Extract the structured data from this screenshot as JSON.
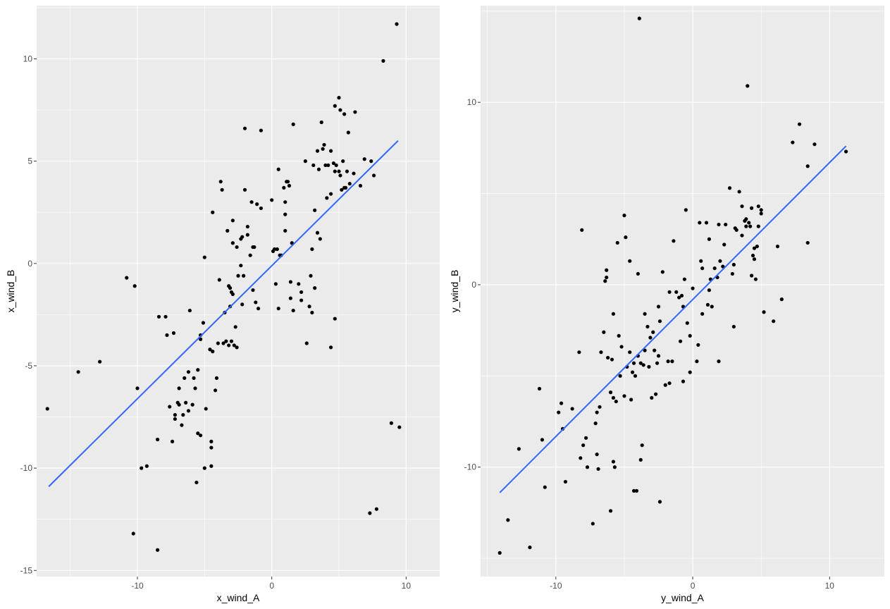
{
  "colors": {
    "panel": "#ebebeb",
    "grid": "#ffffff",
    "point": "#000000",
    "fit": "#3366ff",
    "tick_text": "#4d4d4d"
  },
  "chart_data": [
    {
      "type": "scatter",
      "title": "",
      "xlabel": "x_wind_A",
      "ylabel": "x_wind_B",
      "xlim": [
        -17.5,
        12.5
      ],
      "ylim": [
        -15.3,
        12.6
      ],
      "grid": true,
      "x_ticks": [
        -10,
        0,
        10
      ],
      "y_ticks": [
        -15,
        -10,
        -5,
        0,
        5,
        10
      ],
      "fit_line": {
        "x": [
          -16.6,
          9.4
        ],
        "y": [
          -10.9,
          6.0
        ]
      },
      "points": [
        [
          -16.7,
          -7.1
        ],
        [
          -14.4,
          -5.3
        ],
        [
          -12.8,
          -4.8
        ],
        [
          -10.8,
          -0.7
        ],
        [
          -10.2,
          -1.1
        ],
        [
          -10.0,
          -6.1
        ],
        [
          -9.7,
          -10.0
        ],
        [
          -9.3,
          -9.9
        ],
        [
          -10.3,
          -13.2
        ],
        [
          -8.5,
          -14.0
        ],
        [
          -8.5,
          -8.6
        ],
        [
          -8.4,
          -2.6
        ],
        [
          -7.9,
          -2.6
        ],
        [
          -7.8,
          -3.5
        ],
        [
          -7.6,
          -7.0
        ],
        [
          -7.4,
          -8.7
        ],
        [
          -7.3,
          -3.4
        ],
        [
          -7.2,
          -7.6
        ],
        [
          -7.2,
          -7.4
        ],
        [
          -7.0,
          -6.8
        ],
        [
          -6.9,
          -6.1
        ],
        [
          -6.9,
          -6.9
        ],
        [
          -6.7,
          -7.9
        ],
        [
          -6.6,
          -7.4
        ],
        [
          -6.5,
          -5.6
        ],
        [
          -6.4,
          -6.8
        ],
        [
          -6.2,
          -7.2
        ],
        [
          -6.2,
          -5.3
        ],
        [
          -6.1,
          -2.3
        ],
        [
          -5.9,
          -6.9
        ],
        [
          -5.8,
          -5.6
        ],
        [
          -5.7,
          -6.1
        ],
        [
          -5.6,
          -10.7
        ],
        [
          -5.5,
          -5.2
        ],
        [
          -5.5,
          -8.3
        ],
        [
          -5.3,
          -8.4
        ],
        [
          -5.3,
          -3.5
        ],
        [
          -5.3,
          -3.7
        ],
        [
          -5.1,
          -2.9
        ],
        [
          -5.0,
          -10.0
        ],
        [
          -5.0,
          0.3
        ],
        [
          -4.9,
          -7.1
        ],
        [
          -4.6,
          -4.2
        ],
        [
          -4.5,
          -8.7
        ],
        [
          -4.5,
          -9.0
        ],
        [
          -4.5,
          -9.9
        ],
        [
          -4.4,
          -4.3
        ],
        [
          -4.4,
          2.5
        ],
        [
          -4.2,
          -6.2
        ],
        [
          -4.1,
          -5.6
        ],
        [
          -4.0,
          -3.9
        ],
        [
          -3.9,
          -0.8
        ],
        [
          -3.8,
          4.0
        ],
        [
          -3.7,
          3.6
        ],
        [
          -3.6,
          -3.9
        ],
        [
          -3.5,
          -2.4
        ],
        [
          -3.4,
          -3.8
        ],
        [
          -3.3,
          1.6
        ],
        [
          -3.2,
          -4.0
        ],
        [
          -3.2,
          -1.1
        ],
        [
          -3.1,
          -1.2
        ],
        [
          -3.1,
          -2.1
        ],
        [
          -3.0,
          -3.8
        ],
        [
          -3.0,
          -1.4
        ],
        [
          -2.9,
          -1.5
        ],
        [
          -2.9,
          2.1
        ],
        [
          -2.9,
          1.0
        ],
        [
          -2.8,
          -4.0
        ],
        [
          -2.7,
          -3.1
        ],
        [
          -2.6,
          -4.1
        ],
        [
          -2.6,
          0.8
        ],
        [
          -2.5,
          -0.6
        ],
        [
          -2.3,
          -0.1
        ],
        [
          -2.3,
          1.2
        ],
        [
          -2.2,
          -2.0
        ],
        [
          -2.2,
          1.3
        ],
        [
          -2.1,
          -0.6
        ],
        [
          -2.0,
          3.6
        ],
        [
          -2.0,
          6.6
        ],
        [
          -1.8,
          1.8
        ],
        [
          -1.8,
          1.4
        ],
        [
          -1.6,
          0.4
        ],
        [
          -1.5,
          3.0
        ],
        [
          -1.4,
          -1.3
        ],
        [
          -1.4,
          0.8
        ],
        [
          -1.3,
          0.8
        ],
        [
          -1.2,
          -1.9
        ],
        [
          -1.1,
          2.9
        ],
        [
          -1.0,
          -2.2
        ],
        [
          -0.8,
          2.7
        ],
        [
          -0.8,
          6.5
        ],
        [
          0.0,
          3.1
        ],
        [
          0.1,
          0.6
        ],
        [
          0.2,
          0.7
        ],
        [
          0.3,
          -1.0
        ],
        [
          0.4,
          0.7
        ],
        [
          0.5,
          -2.2
        ],
        [
          0.5,
          4.6
        ],
        [
          0.6,
          0.4
        ],
        [
          0.7,
          0.4
        ],
        [
          0.9,
          3.7
        ],
        [
          1.0,
          2.4
        ],
        [
          1.0,
          3.0
        ],
        [
          1.0,
          1.6
        ],
        [
          1.1,
          4.0
        ],
        [
          1.2,
          4.0
        ],
        [
          1.3,
          3.8
        ],
        [
          1.4,
          -0.9
        ],
        [
          1.4,
          -1.7
        ],
        [
          1.5,
          1.0
        ],
        [
          1.6,
          6.8
        ],
        [
          1.6,
          -2.3
        ],
        [
          2.0,
          -1.0
        ],
        [
          2.2,
          -1.8
        ],
        [
          2.2,
          -1.4
        ],
        [
          2.5,
          5.0
        ],
        [
          2.6,
          -3.9
        ],
        [
          2.8,
          -2.1
        ],
        [
          2.9,
          -0.6
        ],
        [
          3.0,
          0.7
        ],
        [
          3.0,
          -2.4
        ],
        [
          3.1,
          4.8
        ],
        [
          3.2,
          -1.2
        ],
        [
          3.2,
          2.6
        ],
        [
          3.4,
          5.5
        ],
        [
          3.4,
          1.5
        ],
        [
          3.5,
          4.6
        ],
        [
          3.6,
          1.2
        ],
        [
          3.7,
          6.9
        ],
        [
          3.8,
          5.6
        ],
        [
          3.9,
          5.8
        ],
        [
          4.0,
          4.8
        ],
        [
          4.1,
          3.2
        ],
        [
          4.2,
          4.8
        ],
        [
          4.4,
          5.5
        ],
        [
          4.4,
          3.4
        ],
        [
          4.4,
          -4.1
        ],
        [
          4.6,
          4.9
        ],
        [
          4.7,
          -2.7
        ],
        [
          4.7,
          7.7
        ],
        [
          4.7,
          4.5
        ],
        [
          4.8,
          4.8
        ],
        [
          5.0,
          8.1
        ],
        [
          5.0,
          4.5
        ],
        [
          5.1,
          4.3
        ],
        [
          5.1,
          7.5
        ],
        [
          5.2,
          3.6
        ],
        [
          5.3,
          5.0
        ],
        [
          5.4,
          7.3
        ],
        [
          5.4,
          3.7
        ],
        [
          5.5,
          3.7
        ],
        [
          5.6,
          4.5
        ],
        [
          5.7,
          6.4
        ],
        [
          5.8,
          3.9
        ],
        [
          6.1,
          4.4
        ],
        [
          6.2,
          7.4
        ],
        [
          6.6,
          3.8
        ],
        [
          6.9,
          5.1
        ],
        [
          7.3,
          -12.2
        ],
        [
          7.4,
          5.0
        ],
        [
          7.6,
          4.3
        ],
        [
          7.8,
          -12.0
        ],
        [
          8.3,
          9.9
        ],
        [
          8.9,
          -7.8
        ],
        [
          9.3,
          11.7
        ],
        [
          9.5,
          -8.0
        ]
      ]
    },
    {
      "type": "scatter",
      "title": "",
      "xlabel": "y_wind_A",
      "ylabel": "y_wind_B",
      "xlim": [
        -15.5,
        14.0
      ],
      "ylim": [
        -16.0,
        15.3
      ],
      "grid": true,
      "x_ticks": [
        -10,
        0,
        10
      ],
      "y_ticks": [
        -10,
        0,
        10
      ],
      "fit_line": {
        "x": [
          -14.1,
          11.2
        ],
        "y": [
          -11.4,
          7.6
        ]
      },
      "points": [
        [
          -14.1,
          -14.7
        ],
        [
          -13.5,
          -12.9
        ],
        [
          -12.7,
          -9.0
        ],
        [
          -11.9,
          -14.4
        ],
        [
          -11.2,
          -5.7
        ],
        [
          -11.0,
          -8.5
        ],
        [
          -10.8,
          -11.1
        ],
        [
          -9.8,
          -7.0
        ],
        [
          -9.6,
          -6.5
        ],
        [
          -9.5,
          -7.9
        ],
        [
          -9.3,
          -10.8
        ],
        [
          -8.8,
          -6.8
        ],
        [
          -8.3,
          -3.7
        ],
        [
          -8.2,
          -9.5
        ],
        [
          -8.1,
          3.0
        ],
        [
          -8.0,
          -8.8
        ],
        [
          -7.8,
          -8.4
        ],
        [
          -7.7,
          -10.0
        ],
        [
          -7.3,
          -13.1
        ],
        [
          -7.1,
          -7.6
        ],
        [
          -7.0,
          -9.3
        ],
        [
          -7.0,
          -7.0
        ],
        [
          -6.9,
          -10.1
        ],
        [
          -6.8,
          -6.7
        ],
        [
          -6.7,
          -3.7
        ],
        [
          -6.5,
          -2.6
        ],
        [
          -6.4,
          0.2
        ],
        [
          -6.3,
          0.4
        ],
        [
          -6.3,
          0.8
        ],
        [
          -6.2,
          -4.0
        ],
        [
          -6.0,
          -12.4
        ],
        [
          -6.0,
          -5.9
        ],
        [
          -5.9,
          -4.1
        ],
        [
          -5.8,
          -9.7
        ],
        [
          -5.8,
          -1.6
        ],
        [
          -5.8,
          -6.2
        ],
        [
          -5.7,
          -10.0
        ],
        [
          -5.6,
          -6.4
        ],
        [
          -5.5,
          2.3
        ],
        [
          -5.4,
          -2.8
        ],
        [
          -5.3,
          -5.0
        ],
        [
          -5.2,
          -3.4
        ],
        [
          -5.0,
          -6.1
        ],
        [
          -5.0,
          3.8
        ],
        [
          -4.9,
          2.6
        ],
        [
          -4.8,
          -4.5
        ],
        [
          -4.6,
          -3.7
        ],
        [
          -4.6,
          1.3
        ],
        [
          -4.5,
          -6.3
        ],
        [
          -4.4,
          -4.8
        ],
        [
          -4.3,
          -4.3
        ],
        [
          -4.3,
          -11.3
        ],
        [
          -4.2,
          -5.0
        ],
        [
          -4.1,
          -11.3
        ],
        [
          -4.0,
          -3.9
        ],
        [
          -4.0,
          0.6
        ],
        [
          -3.9,
          14.6
        ],
        [
          -3.8,
          -4.3
        ],
        [
          -3.8,
          -9.6
        ],
        [
          -3.7,
          -8.8
        ],
        [
          -3.6,
          -4.4
        ],
        [
          -3.5,
          -1.6
        ],
        [
          -3.5,
          -3.6
        ],
        [
          -3.3,
          -2.3
        ],
        [
          -3.2,
          -4.5
        ],
        [
          -3.1,
          -2.9
        ],
        [
          -3.0,
          -6.2
        ],
        [
          -2.9,
          -2.6
        ],
        [
          -2.8,
          -3.6
        ],
        [
          -2.7,
          -6.0
        ],
        [
          -2.6,
          -4.3
        ],
        [
          -2.5,
          -3.9
        ],
        [
          -2.5,
          -1.2
        ],
        [
          -2.4,
          -11.9
        ],
        [
          -2.4,
          -2.0
        ],
        [
          -2.2,
          0.7
        ],
        [
          -2.0,
          -5.5
        ],
        [
          -1.8,
          -4.2
        ],
        [
          -1.7,
          -5.4
        ],
        [
          -1.7,
          -0.4
        ],
        [
          -1.5,
          -4.2
        ],
        [
          -1.4,
          2.4
        ],
        [
          -1.2,
          -0.4
        ],
        [
          -1.0,
          -0.7
        ],
        [
          -0.9,
          -3.1
        ],
        [
          -0.8,
          -0.6
        ],
        [
          -0.7,
          -5.3
        ],
        [
          -0.7,
          -1.2
        ],
        [
          -0.6,
          0.3
        ],
        [
          -0.5,
          4.1
        ],
        [
          -0.4,
          -2.1
        ],
        [
          -0.2,
          -4.8
        ],
        [
          -0.2,
          -2.8
        ],
        [
          0.0,
          -0.2
        ],
        [
          0.3,
          -4.2
        ],
        [
          0.4,
          -3.3
        ],
        [
          0.5,
          3.4
        ],
        [
          0.6,
          1.3
        ],
        [
          0.7,
          -1.6
        ],
        [
          0.7,
          0.9
        ],
        [
          1.0,
          3.4
        ],
        [
          1.1,
          -1.1
        ],
        [
          1.2,
          -0.3
        ],
        [
          1.2,
          2.5
        ],
        [
          1.3,
          0.3
        ],
        [
          1.4,
          -1.2
        ],
        [
          1.6,
          0.9
        ],
        [
          1.8,
          0.4
        ],
        [
          1.9,
          -4.2
        ],
        [
          1.9,
          3.3
        ],
        [
          2.0,
          1.3
        ],
        [
          2.2,
          1.0
        ],
        [
          2.3,
          2.2
        ],
        [
          2.4,
          3.3
        ],
        [
          2.7,
          5.3
        ],
        [
          2.9,
          0.6
        ],
        [
          3.0,
          -2.3
        ],
        [
          3.0,
          1.1
        ],
        [
          3.1,
          3.1
        ],
        [
          3.2,
          3.0
        ],
        [
          3.4,
          5.1
        ],
        [
          3.6,
          4.3
        ],
        [
          3.6,
          2.7
        ],
        [
          3.8,
          3.5
        ],
        [
          3.9,
          3.2
        ],
        [
          3.9,
          3.6
        ],
        [
          4.0,
          10.9
        ],
        [
          4.1,
          3.4
        ],
        [
          4.2,
          3.2
        ],
        [
          4.3,
          0.5
        ],
        [
          4.3,
          4.2
        ],
        [
          4.4,
          1.6
        ],
        [
          4.5,
          2.0
        ],
        [
          4.5,
          1.4
        ],
        [
          4.6,
          0.3
        ],
        [
          4.7,
          2.1
        ],
        [
          4.8,
          3.2
        ],
        [
          4.8,
          4.3
        ],
        [
          5.0,
          4.1
        ],
        [
          5.0,
          3.9
        ],
        [
          5.2,
          -1.5
        ],
        [
          5.9,
          -2.0
        ],
        [
          6.2,
          2.1
        ],
        [
          6.5,
          -0.8
        ],
        [
          7.3,
          7.8
        ],
        [
          7.8,
          8.8
        ],
        [
          8.4,
          6.5
        ],
        [
          8.4,
          2.3
        ],
        [
          8.9,
          7.7
        ],
        [
          11.2,
          7.3
        ]
      ]
    }
  ]
}
